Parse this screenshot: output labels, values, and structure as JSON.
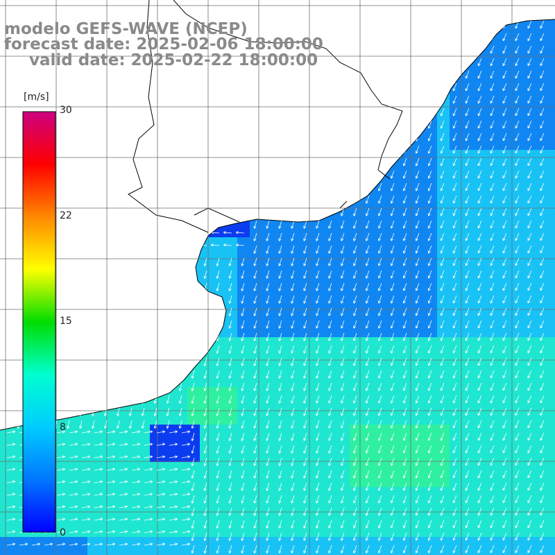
{
  "title": {
    "model": "modelo GEFS-WAVE (NCEP)",
    "forecast": "forecast date: 2025-02-06 18:00:00",
    "valid": "valid date: 2025-02-22 18:00:00"
  },
  "colorbar": {
    "unit": "[m/s]",
    "min": 0,
    "max": 30,
    "ticks": [
      "30",
      "22",
      "15",
      "8",
      "0"
    ],
    "tick_values": [
      30,
      22,
      15,
      8,
      0
    ],
    "stops": [
      "#0000ff",
      "#0077ff",
      "#00ccff",
      "#00ffd0",
      "#00dd00",
      "#ffff00",
      "#ff8800",
      "#ff0000",
      "#cc0080"
    ]
  },
  "map": {
    "variable": "wind speed and direction",
    "field_colors": {
      "calm": "#0b3cf0",
      "low": "#0f86f2",
      "mid": "#18c2f5",
      "high": "#1fe6d0",
      "peak": "#2ef0a0",
      "land": "#ffffff",
      "grid": "#6e6e6e",
      "coast": "#000000",
      "arrow": "#ffffff"
    }
  }
}
